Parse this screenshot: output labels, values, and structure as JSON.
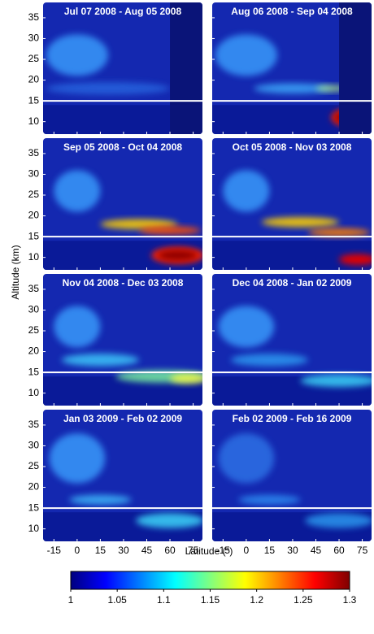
{
  "chart_data": [
    {
      "type": "heatmap",
      "title": "Jul 07 2008 - Aug 05 2008",
      "xlim": [
        -22,
        81
      ],
      "xticks": [
        -15,
        0,
        15,
        30,
        45,
        60,
        75
      ],
      "ylim": [
        7,
        38.7
      ],
      "yticks": [
        10,
        15,
        20,
        25,
        30,
        35
      ],
      "hline": 15
    },
    {
      "type": "heatmap",
      "title": "Aug 06 2008 - Sep 04 2008",
      "xlim": [
        -22,
        81
      ],
      "xticks": [
        -15,
        0,
        15,
        30,
        45,
        60,
        75
      ],
      "ylim": [
        7,
        38.7
      ],
      "yticks": [
        10,
        15,
        20,
        25,
        30,
        35
      ],
      "hline": 15
    },
    {
      "type": "heatmap",
      "title": "Sep 05 2008 - Oct 04 2008",
      "xlim": [
        -22,
        81
      ],
      "xticks": [
        -15,
        0,
        15,
        30,
        45,
        60,
        75
      ],
      "ylim": [
        7,
        38.7
      ],
      "yticks": [
        10,
        15,
        20,
        25,
        30,
        35
      ],
      "hline": 15
    },
    {
      "type": "heatmap",
      "title": "Oct 05 2008 - Nov 03 2008",
      "xlim": [
        -22,
        81
      ],
      "xticks": [
        -15,
        0,
        15,
        30,
        45,
        60,
        75
      ],
      "ylim": [
        7,
        38.7
      ],
      "yticks": [
        10,
        15,
        20,
        25,
        30,
        35
      ],
      "hline": 15
    },
    {
      "type": "heatmap",
      "title": "Nov 04 2008 - Dec 03 2008",
      "xlim": [
        -22,
        81
      ],
      "xticks": [
        -15,
        0,
        15,
        30,
        45,
        60,
        75
      ],
      "ylim": [
        7,
        38.7
      ],
      "yticks": [
        10,
        15,
        20,
        25,
        30,
        35
      ],
      "hline": 15
    },
    {
      "type": "heatmap",
      "title": "Dec 04 2008 - Jan 02 2009",
      "xlim": [
        -22,
        81
      ],
      "xticks": [
        -15,
        0,
        15,
        30,
        45,
        60,
        75
      ],
      "ylim": [
        7,
        38.7
      ],
      "yticks": [
        10,
        15,
        20,
        25,
        30,
        35
      ],
      "hline": 15
    },
    {
      "type": "heatmap",
      "title": "Jan 03 2009 - Feb 02 2009",
      "xlim": [
        -22,
        81
      ],
      "xticks": [
        -15,
        0,
        15,
        30,
        45,
        60,
        75
      ],
      "ylim": [
        7,
        38.7
      ],
      "yticks": [
        10,
        15,
        20,
        25,
        30,
        35
      ],
      "hline": 15
    },
    {
      "type": "heatmap",
      "title": "Feb 02 2009 - Feb 16 2009",
      "xlim": [
        -22,
        81
      ],
      "xticks": [
        -15,
        0,
        15,
        30,
        45,
        60,
        75
      ],
      "ylim": [
        7,
        38.7
      ],
      "yticks": [
        10,
        15,
        20,
        25,
        30,
        35
      ],
      "hline": 15
    }
  ],
  "figure": {
    "x_label": "Latitude (°)",
    "y_label": "Altitude (km)"
  },
  "colorbar": {
    "lim": [
      1,
      1.3
    ],
    "ticks": [
      1,
      1.05,
      1.1,
      1.15,
      1.2,
      1.25,
      1.3
    ],
    "colormap": [
      "#00007f",
      "#0000ff",
      "#0080ff",
      "#00ffff",
      "#80ff80",
      "#ffff00",
      "#ff8000",
      "#ff0000",
      "#7f0000"
    ]
  }
}
